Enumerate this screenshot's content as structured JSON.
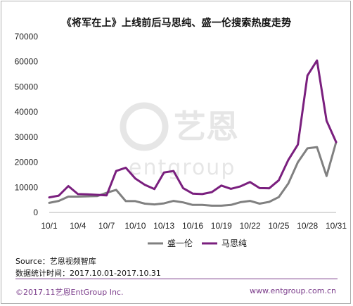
{
  "header": {
    "title": "《将军在上》上线前后马思纯、盛一伦搜索热度走势"
  },
  "chart_data": {
    "type": "line",
    "title": "《将军在上》上线前后马思纯、盛一伦搜索热度走势",
    "xlabel": "",
    "ylabel": "",
    "ylim": [
      0,
      70000
    ],
    "yticks": [
      0,
      10000,
      20000,
      30000,
      40000,
      50000,
      60000,
      70000
    ],
    "ytick_labels": [
      "0",
      "10000",
      "20000",
      "30000",
      "40000",
      "50000",
      "60000",
      "70000"
    ],
    "x": [
      "10/1",
      "10/2",
      "10/3",
      "10/4",
      "10/5",
      "10/6",
      "10/7",
      "10/8",
      "10/9",
      "10/10",
      "10/11",
      "10/12",
      "10/13",
      "10/14",
      "10/15",
      "10/16",
      "10/17",
      "10/18",
      "10/19",
      "10/20",
      "10/21",
      "10/22",
      "10/23",
      "10/24",
      "10/25",
      "10/26",
      "10/27",
      "10/28",
      "10/29",
      "10/30",
      "10/31"
    ],
    "xtick_labels": [
      "10/1",
      "10/4",
      "10/7",
      "10/10",
      "10/13",
      "10/16",
      "10/19",
      "10/22",
      "10/25",
      "10/28",
      "10/31"
    ],
    "grid": false,
    "legend": "bottom",
    "series": [
      {
        "name": "盛一伦",
        "color": "#808080",
        "values": [
          3800,
          4600,
          6300,
          6300,
          6400,
          6500,
          7800,
          9000,
          4500,
          4500,
          3500,
          3200,
          3600,
          4600,
          4000,
          3000,
          3000,
          2700,
          2700,
          3000,
          4100,
          4600,
          3500,
          4200,
          6100,
          11500,
          20000,
          25500,
          26000,
          14500,
          28000
        ]
      },
      {
        "name": "马思纯",
        "color": "#7a1f7e",
        "values": [
          6000,
          6700,
          10500,
          7300,
          7200,
          7000,
          6800,
          16500,
          17800,
          13500,
          11000,
          9300,
          15900,
          16500,
          9700,
          7500,
          7300,
          8100,
          10700,
          9400,
          10400,
          12100,
          9700,
          9600,
          12800,
          20900,
          27000,
          54500,
          60500,
          36500,
          28000
        ]
      }
    ]
  },
  "source": {
    "source_line": "Source：艺恩视频智库",
    "period_line": "数据统计时间：2017.10.01-2017.10.31"
  },
  "footer": {
    "left": "©2017.11艺恩EntGroup Inc.",
    "right": "www.entgroup.com.cn"
  },
  "watermark": {
    "brand_cn": "艺恩",
    "brand_en": "entgroup"
  }
}
